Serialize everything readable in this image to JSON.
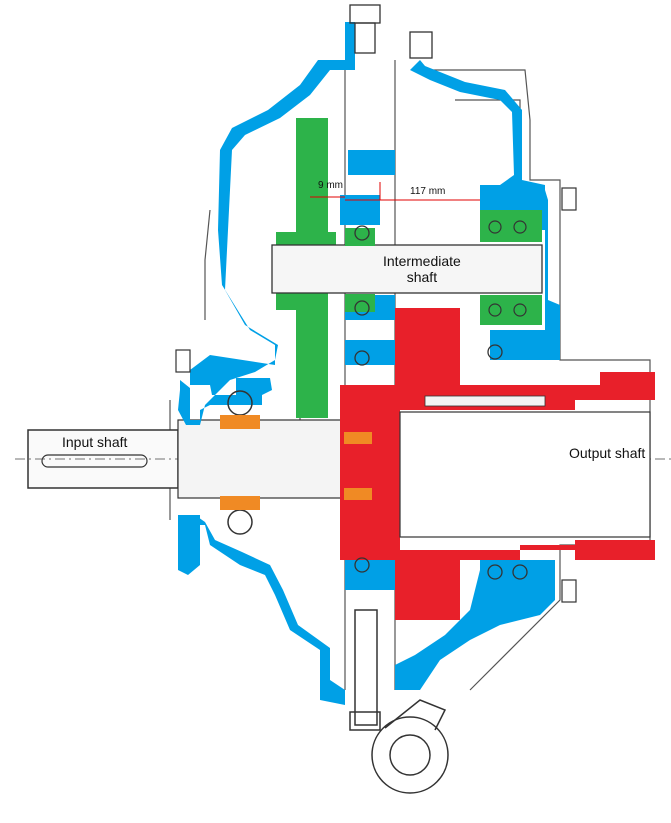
{
  "labels": {
    "input_shaft": "Input shaft",
    "output_shaft": "Output shaft",
    "intermediate_shaft": "Intermediate\nshaft",
    "dim_small": "9 mm",
    "dim_large": "117 mm"
  },
  "colors": {
    "housing": "#00a0e6",
    "gear": "#2db34a",
    "output": "#e8202a",
    "bearing_rollers": "#f08a24",
    "line": "#333333",
    "dimension": "#e00000"
  }
}
